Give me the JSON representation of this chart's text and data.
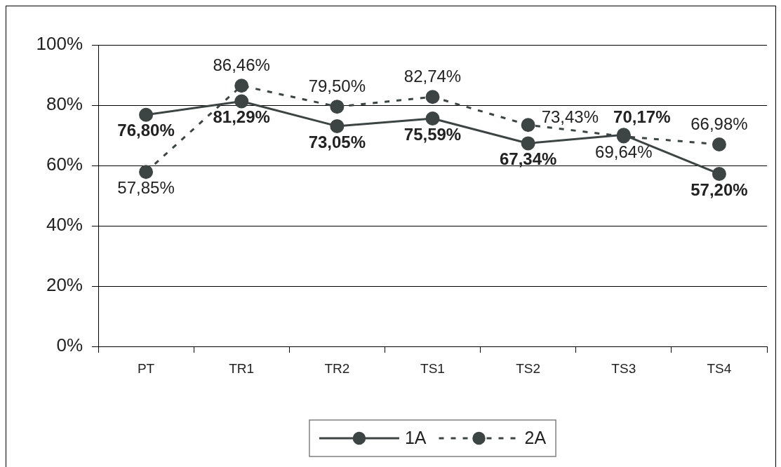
{
  "chart_data": {
    "type": "line",
    "categories": [
      "PT",
      "TR1",
      "TR2",
      "TS1",
      "TS2",
      "TS3",
      "TS4"
    ],
    "series": [
      {
        "name": "1A",
        "color": "#3c4543",
        "line_style": "solid",
        "values": [
          76.8,
          81.29,
          73.05,
          75.59,
          67.34,
          70.17,
          57.2
        ],
        "value_labels": [
          "76,80%",
          "81,29%",
          "73,05%",
          "75,59%",
          "67,34%",
          "70,17%",
          "57,20%"
        ]
      },
      {
        "name": "2A",
        "color": "#3c4543",
        "line_style": "dashed",
        "values": [
          57.85,
          86.46,
          79.5,
          82.74,
          73.43,
          69.64,
          66.98
        ],
        "value_labels": [
          "57,85%",
          "86,46%",
          "79,50%",
          "82,74%",
          "73,43%",
          "69,64%",
          "66,98%"
        ]
      }
    ],
    "ylim": [
      0,
      100
    ],
    "yticks": [
      {
        "value": 0,
        "label": "0%"
      },
      {
        "value": 20,
        "label": "20%"
      },
      {
        "value": 40,
        "label": "40%"
      },
      {
        "value": 60,
        "label": "60%"
      },
      {
        "value": 80,
        "label": "80%"
      },
      {
        "value": 100,
        "label": "100%"
      }
    ],
    "grid": "y",
    "legend": "bottom",
    "marker": "circle"
  }
}
